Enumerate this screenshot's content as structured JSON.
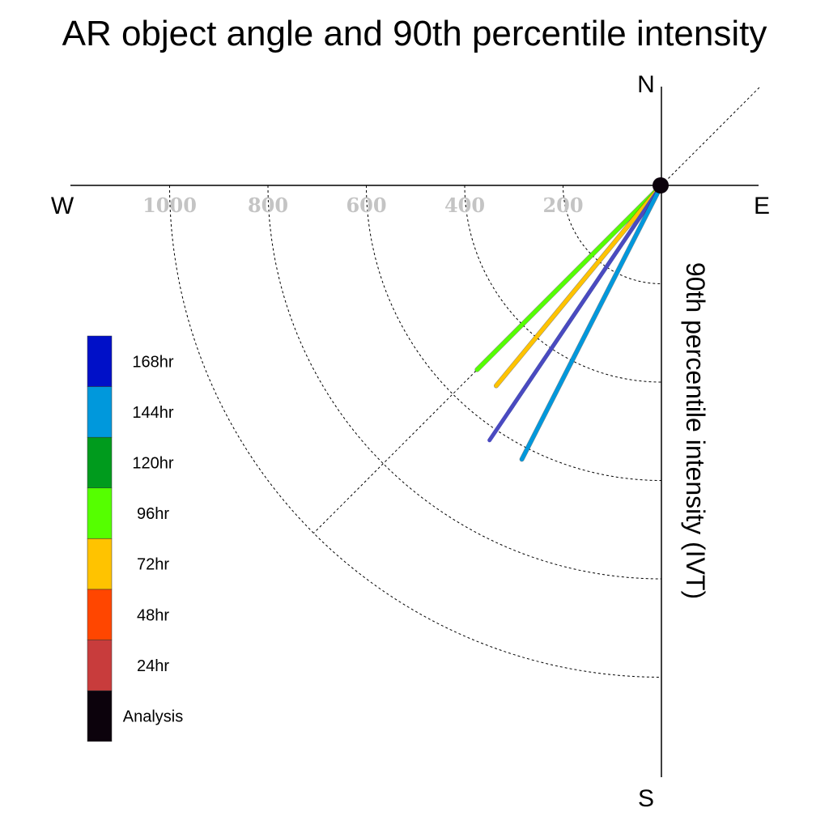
{
  "chart_data": {
    "type": "polar-line",
    "title": "AR object angle and 90th percentile intensity",
    "ylabel": "90th percentile intensity (IVT)",
    "compass": {
      "north": "N",
      "south": "S",
      "east": "E",
      "west": "W"
    },
    "radial_ticks": [
      200,
      400,
      600,
      800,
      1000
    ],
    "grid": true,
    "legend": [
      {
        "label": "168hr",
        "color": "#0010c8"
      },
      {
        "label": "144hr",
        "color": "#0098dc"
      },
      {
        "label": "120hr",
        "color": "#009b1d"
      },
      {
        "label": "96hr",
        "color": "#55ff00"
      },
      {
        "label": "72hr",
        "color": "#ffc300"
      },
      {
        "label": "48hr",
        "color": "#ff4600"
      },
      {
        "label": "24hr",
        "color": "#c83c3c"
      },
      {
        "label": "Analysis",
        "color": "#0c020c"
      }
    ],
    "series": [
      {
        "name": "96hr",
        "color": "#55ff00",
        "outline": true,
        "direction_deg": 225,
        "magnitude": 530
      },
      {
        "name": "72hr",
        "color": "#ffc300",
        "outline": true,
        "direction_deg": 219.5,
        "magnitude": 528
      },
      {
        "name": "120hr",
        "color": "#2e8b2e",
        "outline": false,
        "direction_deg": 214,
        "magnitude": 555
      },
      {
        "name": "168hr",
        "color": "#4a4ac0",
        "outline": false,
        "direction_deg": 214,
        "magnitude": 625
      },
      {
        "name": "144hr",
        "color": "#0098dc",
        "outline": true,
        "direction_deg": 207,
        "magnitude": 625
      },
      {
        "name": "Analysis",
        "color": "#0c020c",
        "outline": false,
        "direction_deg": 0,
        "magnitude": 0,
        "marker": "dot"
      }
    ]
  }
}
